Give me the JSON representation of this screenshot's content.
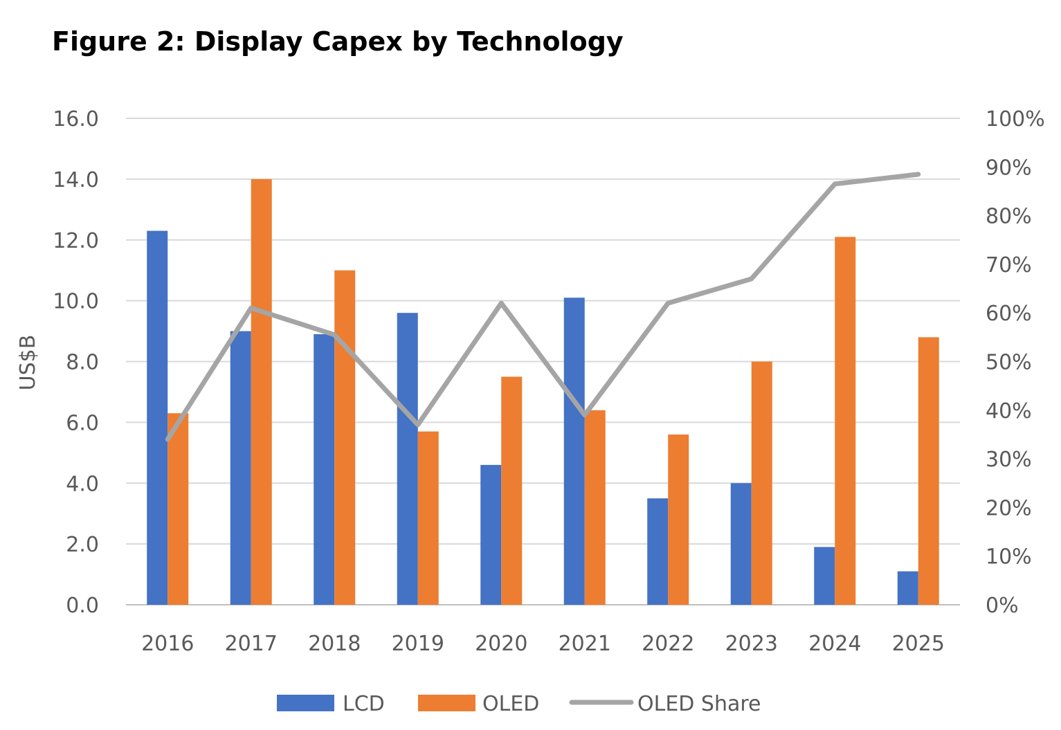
{
  "chart_data": {
    "type": "bar",
    "title": "Figure 2: Display Capex by Technology",
    "categories": [
      "2016",
      "2017",
      "2018",
      "2019",
      "2020",
      "2021",
      "2022",
      "2023",
      "2024",
      "2025"
    ],
    "series": [
      {
        "name": "LCD",
        "type": "bar",
        "axis": "left",
        "color": "#4472C4",
        "values": [
          12.3,
          9.0,
          8.9,
          9.6,
          4.6,
          10.1,
          3.5,
          4.0,
          1.9,
          1.1
        ]
      },
      {
        "name": "OLED",
        "type": "bar",
        "axis": "left",
        "color": "#ED7D31",
        "values": [
          6.3,
          14.0,
          11.0,
          5.7,
          7.5,
          6.4,
          5.6,
          8.0,
          12.1,
          8.8
        ]
      },
      {
        "name": "OLED Share",
        "type": "line",
        "axis": "right",
        "color": "#A5A5A5",
        "values": [
          0.34,
          0.61,
          0.555,
          0.37,
          0.62,
          0.39,
          0.62,
          0.67,
          0.865,
          0.885
        ]
      }
    ],
    "ylabel": "US$B",
    "ylim": [
      0,
      16
    ],
    "yticks": [
      "0.0",
      "2.0",
      "4.0",
      "6.0",
      "8.0",
      "10.0",
      "12.0",
      "14.0",
      "16.0"
    ],
    "y2lim": [
      0,
      1
    ],
    "y2ticks": [
      "0%",
      "10%",
      "20%",
      "30%",
      "40%",
      "50%",
      "60%",
      "70%",
      "80%",
      "90%",
      "100%"
    ],
    "grid": true,
    "legend": "bottom"
  }
}
